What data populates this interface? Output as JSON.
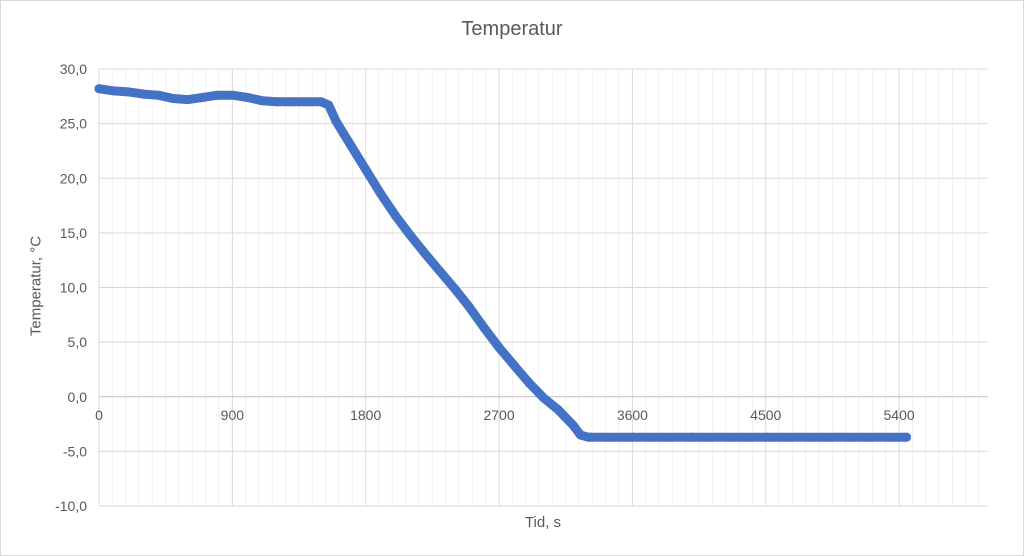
{
  "chart_data": {
    "type": "scatter",
    "title": "Temperatur",
    "xlabel": "Tid, s",
    "ylabel": "Temperatur, °C",
    "xlim": [
      0,
      6000
    ],
    "ylim": [
      -10,
      30
    ],
    "x_major_step": 900,
    "x_minor_step": 90,
    "y_major_step": 5,
    "x_tick_labels": [
      "0",
      "900",
      "1800",
      "2700",
      "3600",
      "4500",
      "5400"
    ],
    "y_tick_labels": [
      "-10,0",
      "-5,0",
      "0,0",
      "5,0",
      "10,0",
      "15,0",
      "20,0",
      "25,0",
      "30,0"
    ],
    "grid": true,
    "legend": "none",
    "series_color": "#4472c4",
    "x_curve": [
      0,
      100,
      200,
      300,
      400,
      500,
      600,
      700,
      800,
      900,
      1000,
      1100,
      1200,
      1300,
      1400,
      1500,
      1550,
      1600,
      1700,
      1800,
      1900,
      2000,
      2100,
      2200,
      2300,
      2400,
      2500,
      2600,
      2700,
      2800,
      2900,
      3000,
      3100,
      3200,
      3250,
      3300,
      3320,
      3400,
      3600,
      4000,
      4500,
      5000,
      5450
    ],
    "y_curve": [
      28.2,
      28.0,
      27.9,
      27.7,
      27.6,
      27.3,
      27.2,
      27.4,
      27.6,
      27.6,
      27.4,
      27.1,
      27.0,
      27.0,
      27.0,
      27.0,
      26.7,
      25.2,
      23.0,
      20.8,
      18.6,
      16.6,
      14.8,
      13.1,
      11.5,
      9.9,
      8.2,
      6.3,
      4.5,
      2.9,
      1.3,
      -0.1,
      -1.2,
      -2.6,
      -3.5,
      -3.7,
      -3.7,
      -3.7,
      -3.7,
      -3.7,
      -3.7,
      -3.7,
      -3.7
    ]
  }
}
